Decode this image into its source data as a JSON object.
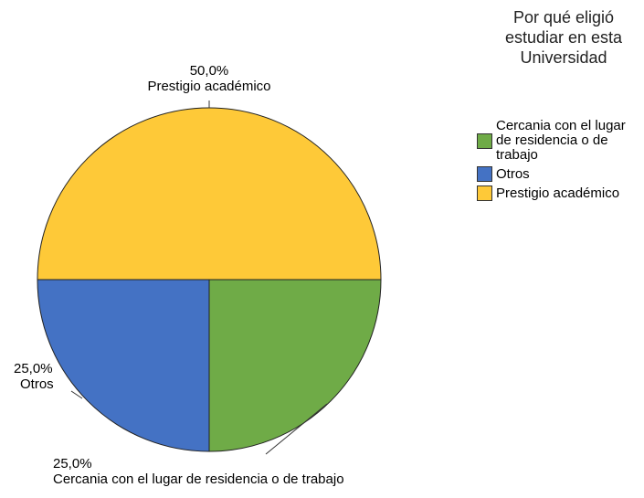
{
  "chart_data": {
    "type": "pie",
    "legend_title": "Por qué eligió estudiar en esta Universidad",
    "categories": [
      "Cercania con el lugar de residencia o de trabajo",
      "Otros",
      "Prestigio académico"
    ],
    "values": [
      25,
      25,
      50
    ],
    "value_labels": [
      "25,0%",
      "25,0%",
      "50,0%"
    ],
    "colors": [
      "#6fab47",
      "#4472c4",
      "#fec938"
    ],
    "legend": "right"
  }
}
